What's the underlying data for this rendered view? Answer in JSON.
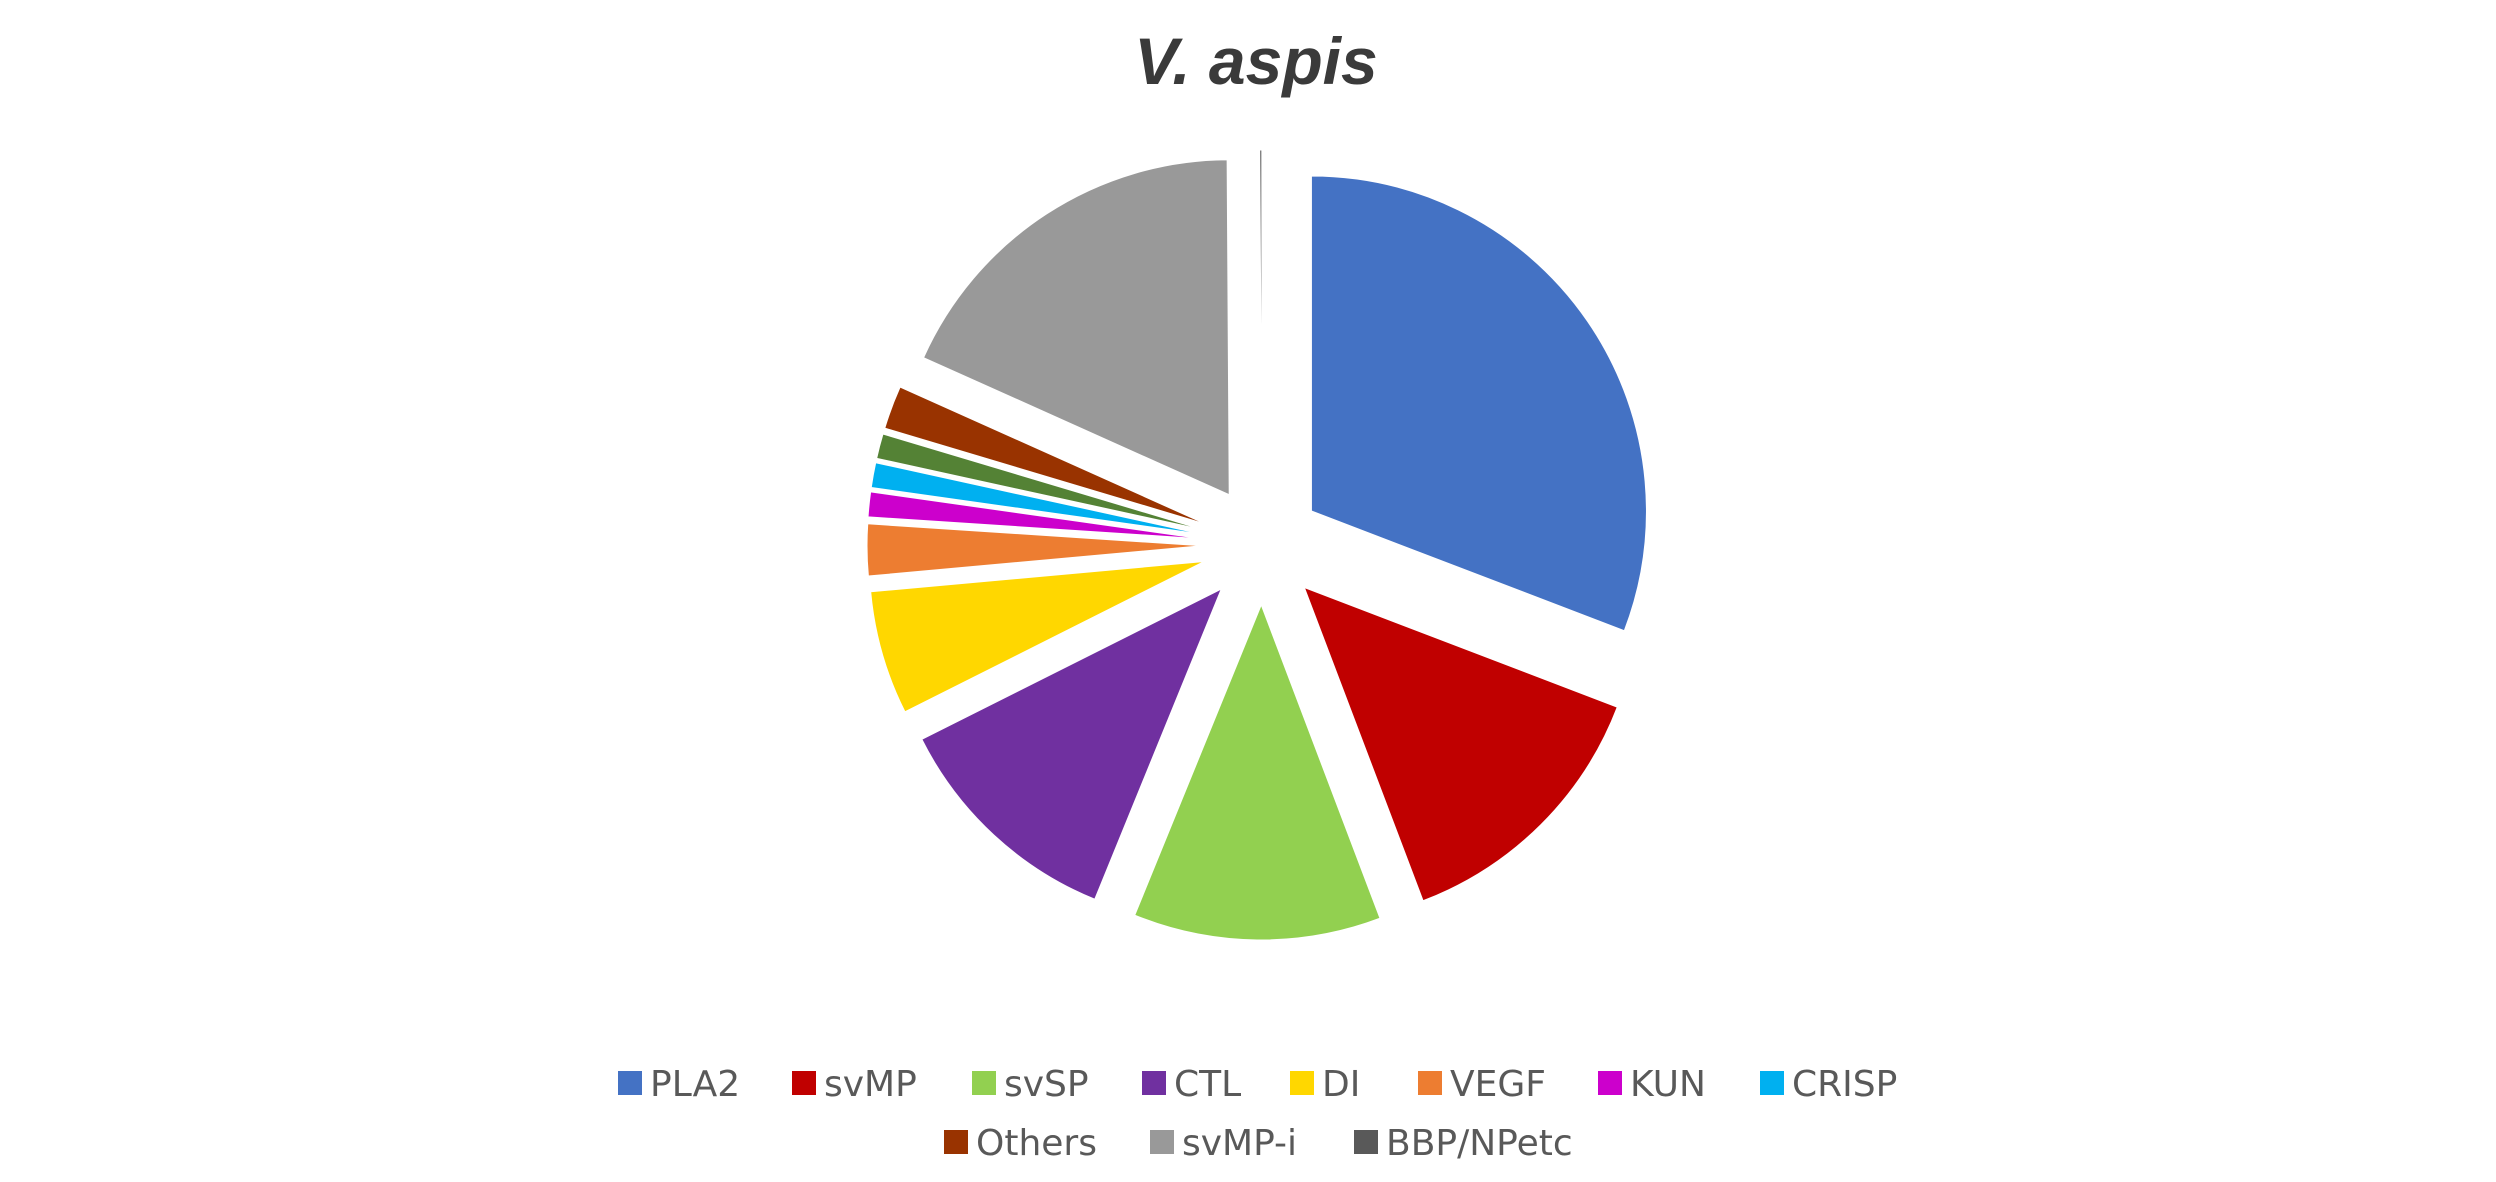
{
  "chart_data": {
    "type": "pie",
    "title": "V. aspis",
    "exploded": true,
    "legend_position": "bottom",
    "slices": [
      {
        "label": "PLA2",
        "value": 31.0,
        "color": "#4472C4"
      },
      {
        "label": "svMP",
        "value": 13.5,
        "color": "#C00000"
      },
      {
        "label": "svSP",
        "value": 12.0,
        "color": "#92D050"
      },
      {
        "label": "CTL",
        "value": 11.5,
        "color": "#7030A0"
      },
      {
        "label": "DI",
        "value": 6.0,
        "color": "#FFD700"
      },
      {
        "label": "VEGF",
        "value": 2.5,
        "color": "#ED7D31"
      },
      {
        "label": "KUN",
        "value": 1.2,
        "color": "#CC00CC"
      },
      {
        "label": "CRISP",
        "value": 1.2,
        "color": "#00B0F0"
      },
      {
        "label": "",
        "value": 1.2,
        "color": "#548235"
      },
      {
        "label": "Others",
        "value": 2.1,
        "color": "#993300"
      },
      {
        "label": "svMP-i",
        "value": 18.3,
        "color": "#999999"
      },
      {
        "label": "BBP/NPetc",
        "value": 0.1,
        "color": "#595959"
      }
    ]
  }
}
